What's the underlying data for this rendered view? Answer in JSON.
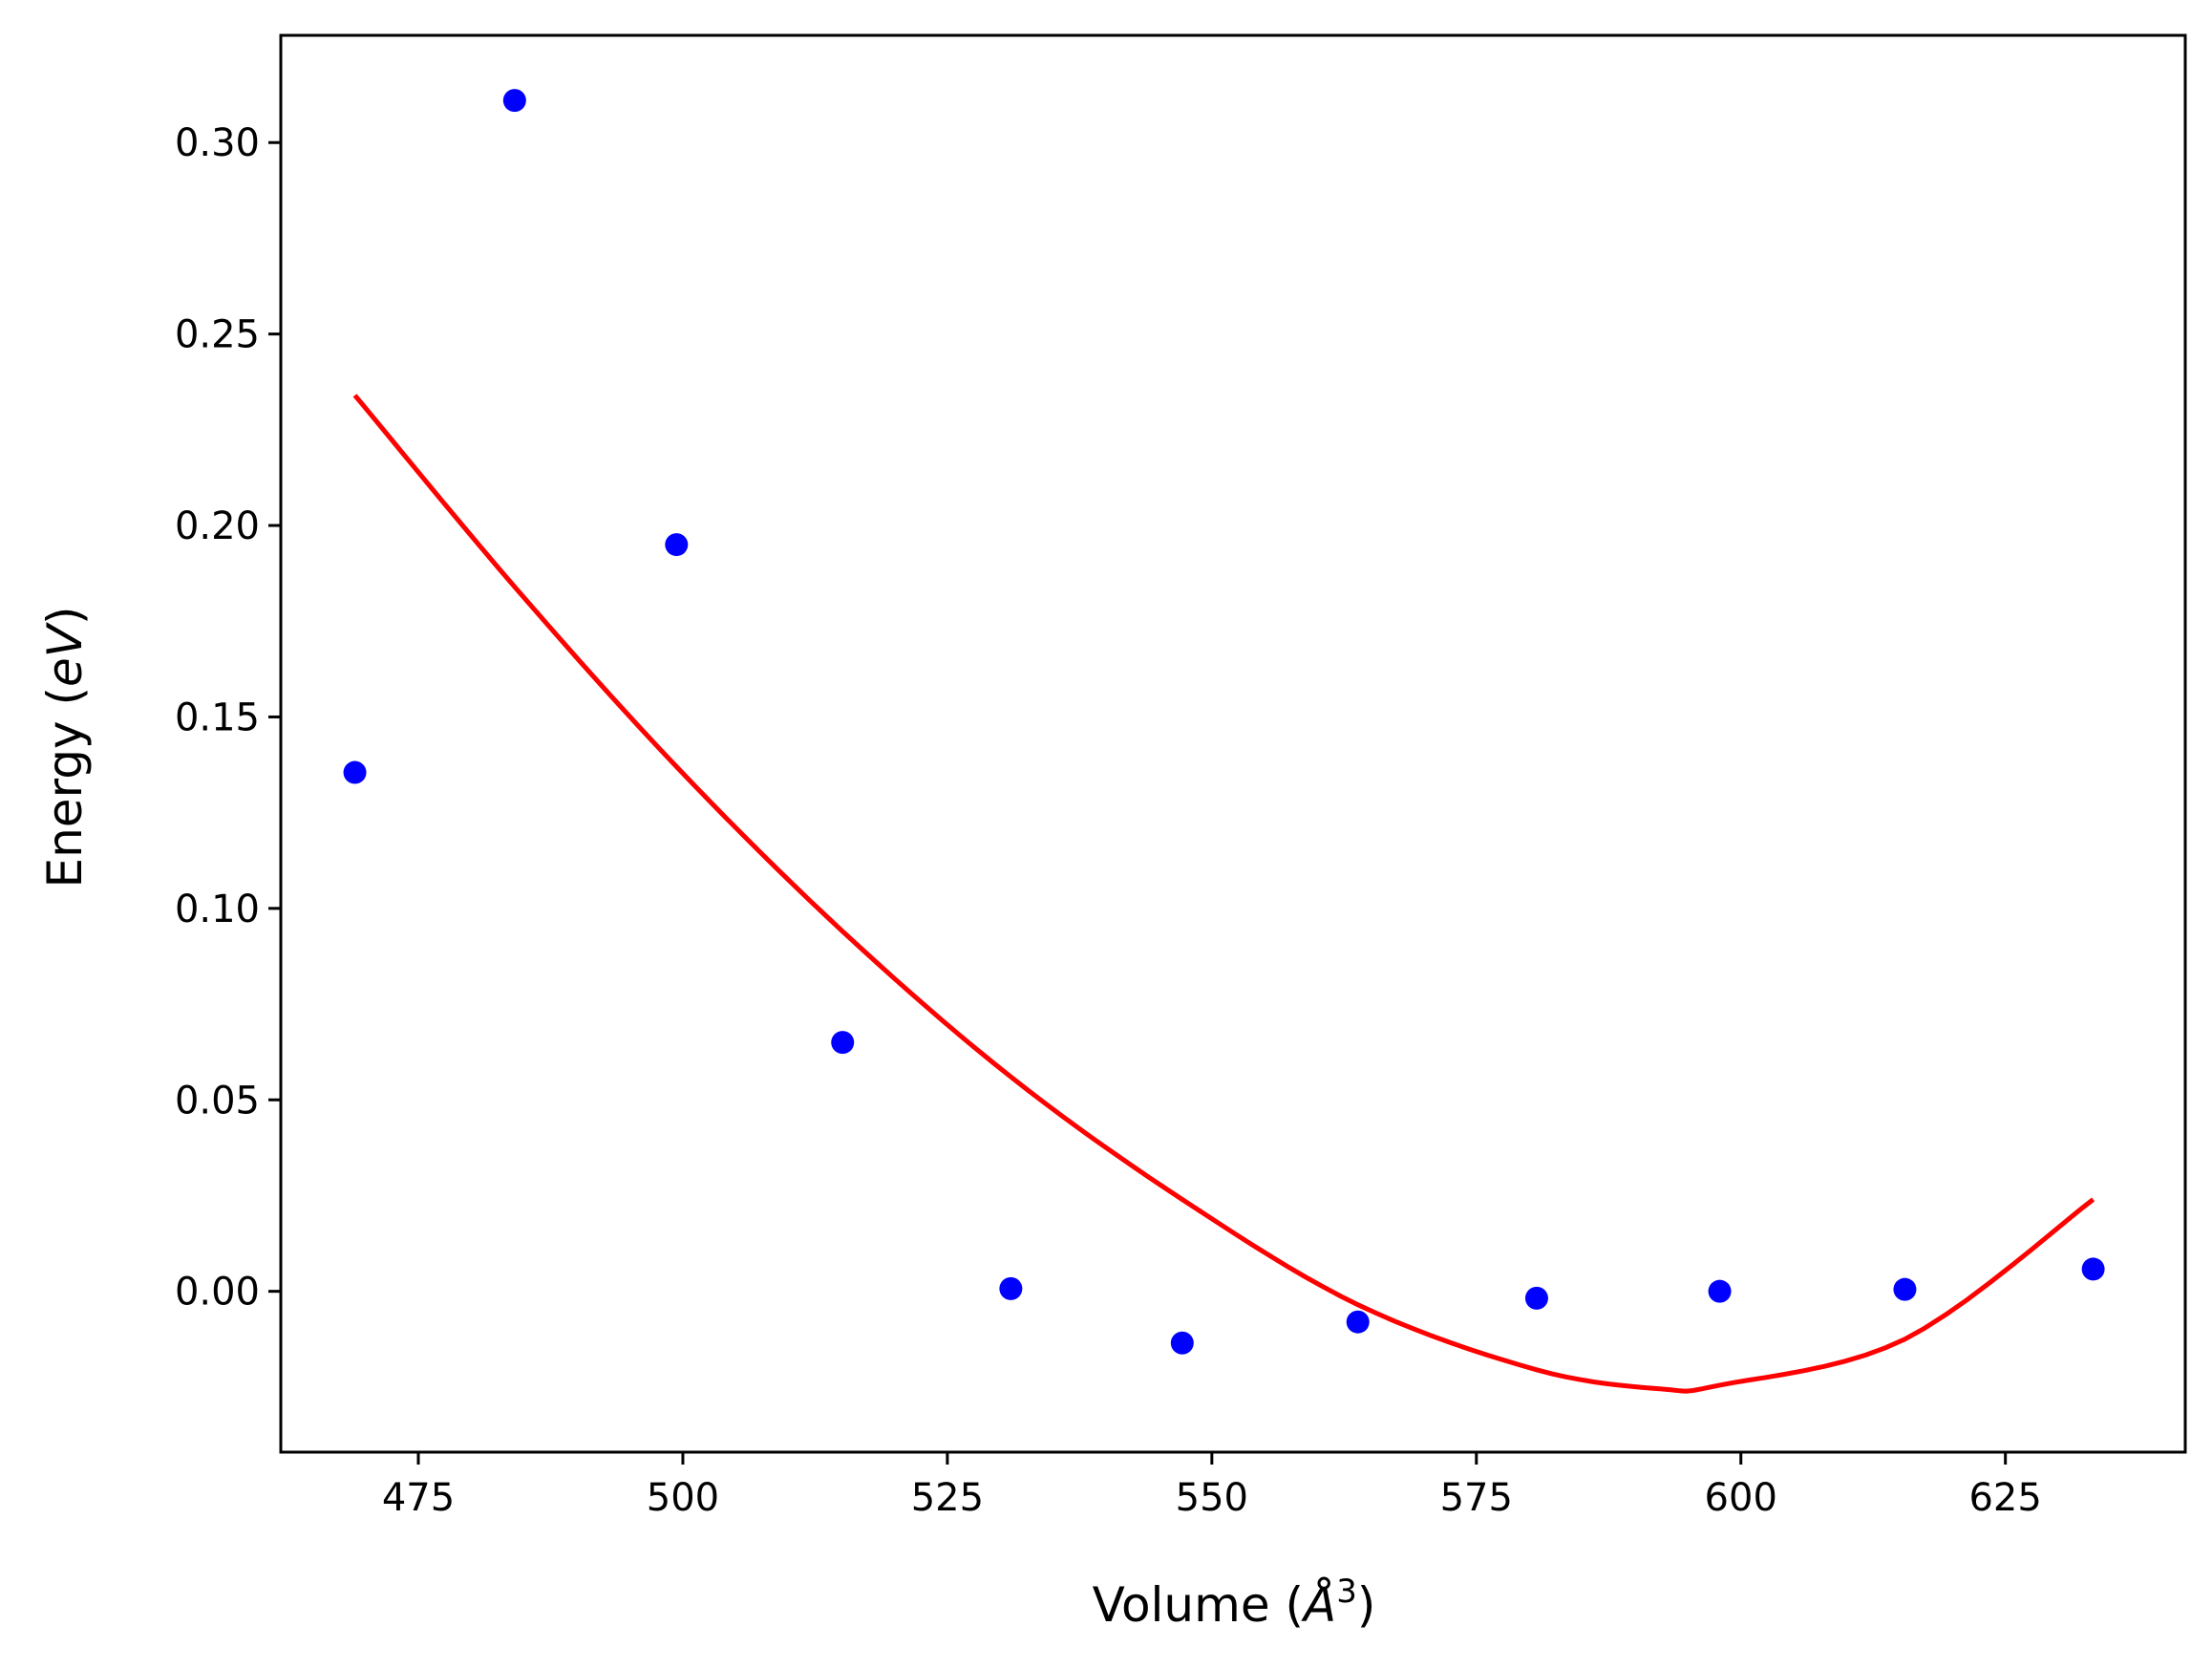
{
  "chart_data": {
    "type": "scatter",
    "title": "",
    "xlabel": "Volume (Å³)",
    "ylabel": "Energy (eV)",
    "xlabel_parts": {
      "prefix": "Volume (",
      "symbol": "Å",
      "exponent": "3",
      "suffix": ")"
    },
    "ylabel_parts": {
      "prefix": "Energy (",
      "symbol": "eV",
      "suffix": ")"
    },
    "xlim": [
      462,
      642
    ],
    "ylim": [
      -0.042,
      0.328
    ],
    "xticks": [
      475,
      500,
      525,
      550,
      575,
      600,
      625
    ],
    "xtick_labels": [
      "475",
      "500",
      "525",
      "550",
      "575",
      "600",
      "625"
    ],
    "yticks": [
      0.0,
      0.05,
      0.1,
      0.15,
      0.2,
      0.25,
      0.3
    ],
    "ytick_labels": [
      "0.00",
      "0.05",
      "0.10",
      "0.15",
      "0.20",
      "0.25",
      "0.30"
    ],
    "grid": false,
    "legend": "none",
    "series": [
      {
        "kind": "scatter",
        "color": "#0000ff",
        "x": [
          469.0,
          484.1,
          499.4,
          515.1,
          531.0,
          547.2,
          563.8,
          580.7,
          598.0,
          615.5,
          633.3
        ],
        "y": [
          0.1355,
          0.311,
          0.195,
          0.065,
          0.0007,
          -0.0135,
          -0.008,
          -0.0018,
          0.0,
          0.0005,
          0.0058
        ]
      },
      {
        "kind": "line",
        "color": "#ff0000",
        "x": [
          469.0,
          484.1,
          499.4,
          515.1,
          531.0,
          547.2,
          563.8,
          580.7,
          592.5,
          598.0,
          615.5,
          633.3
        ],
        "y": [
          0.234,
          0.184,
          0.137,
          0.094,
          0.056,
          0.024,
          -0.0035,
          -0.0205,
          -0.0255,
          -0.0245,
          -0.0125,
          0.024
        ]
      }
    ]
  }
}
